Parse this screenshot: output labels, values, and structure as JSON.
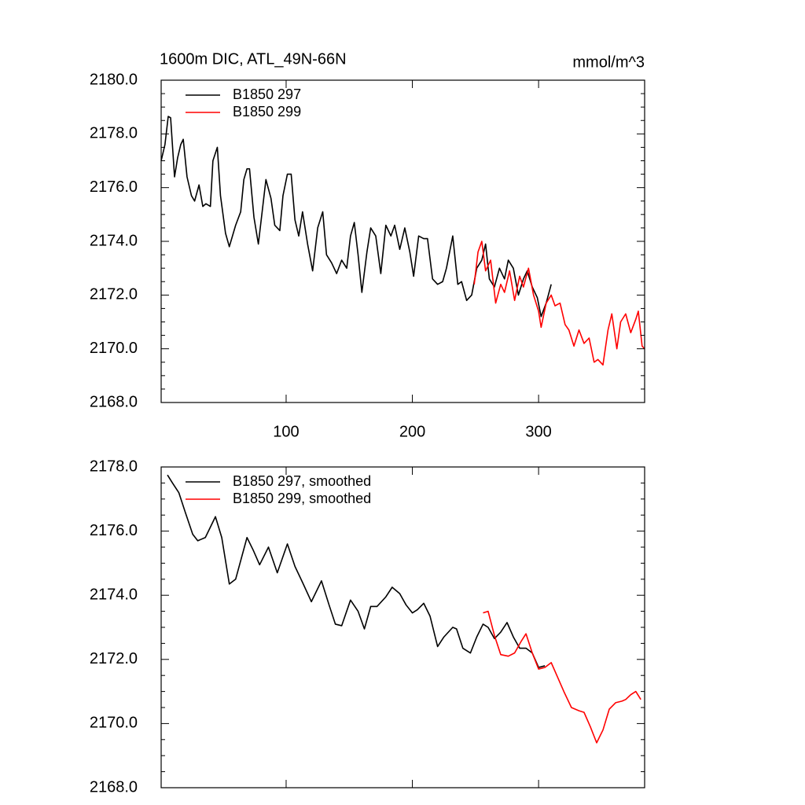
{
  "chart_data": [
    {
      "type": "line",
      "title": "1600m DIC, ATL_49N-66N",
      "subtitle": "mmol/m^3",
      "xlim": [
        1,
        384
      ],
      "xticks": [
        100,
        200,
        300
      ],
      "ylim": [
        2168,
        2180
      ],
      "yticks": [
        {
          "value": 2168,
          "label": "2168.0"
        },
        {
          "value": 2170,
          "label": "2170.0"
        },
        {
          "value": 2172,
          "label": "2172.0"
        },
        {
          "value": 2174,
          "label": "2174.0"
        },
        {
          "value": 2176,
          "label": "2176.0"
        },
        {
          "value": 2178,
          "label": "2178.0"
        },
        {
          "value": 2180,
          "label": "2180.0"
        }
      ],
      "legend": "top-left",
      "series": [
        {
          "name": "B1850 297",
          "color": "#000000",
          "x": [
            1,
            4,
            6.6,
            8.5,
            11.6,
            14,
            16.5,
            18.5,
            20,
            21.5,
            25,
            27.5,
            31,
            34,
            36.5,
            40,
            42,
            45.5,
            48,
            52,
            55,
            60,
            64,
            66.5,
            69,
            71,
            74.5,
            78,
            81,
            84,
            88,
            91,
            95,
            97.5,
            101,
            104,
            107,
            110,
            113,
            117,
            121,
            125,
            129,
            132,
            136,
            140,
            144,
            148,
            151,
            154,
            157,
            160,
            164,
            167,
            171,
            175,
            179,
            183,
            186,
            190,
            194,
            198,
            201,
            205,
            209,
            212,
            216,
            220,
            224,
            227,
            232,
            236,
            239,
            243,
            247,
            251,
            255,
            258,
            261,
            265,
            269,
            273,
            276,
            280,
            284,
            288,
            291,
            295,
            299,
            302,
            306,
            310
          ],
          "values": [
            2177.0,
            2177.6,
            2178.65,
            2178.6,
            2176.4,
            2177.1,
            2177.6,
            2177.8,
            2177.1,
            2176.4,
            2175.7,
            2175.5,
            2176.1,
            2175.3,
            2175.4,
            2175.3,
            2177.0,
            2177.5,
            2175.7,
            2174.3,
            2173.8,
            2174.6,
            2175.1,
            2176.3,
            2176.7,
            2176.7,
            2174.9,
            2173.9,
            2175.1,
            2176.3,
            2175.6,
            2174.6,
            2174.4,
            2175.7,
            2176.5,
            2176.5,
            2174.8,
            2174.2,
            2175.1,
            2173.9,
            2172.9,
            2174.5,
            2175.1,
            2173.5,
            2173.2,
            2172.8,
            2173.3,
            2173.0,
            2174.2,
            2174.7,
            2173.5,
            2172.1,
            2173.6,
            2174.5,
            2174.2,
            2172.8,
            2174.6,
            2174.2,
            2174.6,
            2173.7,
            2174.5,
            2173.6,
            2172.7,
            2174.2,
            2174.1,
            2174.1,
            2172.6,
            2172.4,
            2172.5,
            2173.0,
            2174.2,
            2172.4,
            2172.5,
            2171.8,
            2172.0,
            2173.0,
            2173.3,
            2173.9,
            2172.6,
            2172.3,
            2173.0,
            2172.6,
            2173.3,
            2173.0,
            2172.0,
            2172.6,
            2172.9,
            2172.3,
            2171.9,
            2171.2,
            2171.7,
            2172.4
          ]
        },
        {
          "name": "B1850 299",
          "color": "#ff0000",
          "x": [
            249,
            252,
            255,
            258,
            262,
            266,
            270,
            273,
            277,
            281,
            285,
            288,
            292,
            296,
            300,
            302,
            306,
            310,
            313,
            317,
            321,
            324,
            328,
            332,
            336,
            340,
            344,
            347,
            351,
            355,
            358,
            362,
            365,
            369,
            373,
            377,
            379,
            382,
            384
          ],
          "values": [
            2172.4,
            2173.6,
            2174.0,
            2172.9,
            2173.3,
            2171.7,
            2172.4,
            2172.1,
            2172.9,
            2171.8,
            2172.7,
            2172.3,
            2173.0,
            2172.0,
            2171.4,
            2170.8,
            2171.7,
            2172.0,
            2171.6,
            2171.7,
            2170.9,
            2170.7,
            2170.1,
            2170.7,
            2170.2,
            2170.4,
            2169.5,
            2169.6,
            2169.4,
            2170.7,
            2171.3,
            2170.0,
            2171.0,
            2171.3,
            2170.6,
            2171.1,
            2171.4,
            2170.1,
            2170.0
          ]
        }
      ]
    },
    {
      "type": "line",
      "xlim": [
        1,
        384
      ],
      "xticks": [
        100,
        200,
        300
      ],
      "xtick_labels": false,
      "ylim": [
        2168,
        2178
      ],
      "yticks": [
        {
          "value": 2168,
          "label": "2168.0"
        },
        {
          "value": 2170,
          "label": "2170.0"
        },
        {
          "value": 2172,
          "label": "2172.0"
        },
        {
          "value": 2174,
          "label": "2174.0"
        },
        {
          "value": 2176,
          "label": "2176.0"
        },
        {
          "value": 2178,
          "label": "2178.0"
        }
      ],
      "legend": "top-left",
      "series": [
        {
          "name": "B1850 297, smoothed",
          "color": "#000000",
          "x": [
            6,
            10,
            15,
            20,
            26,
            30,
            36,
            44,
            49,
            55,
            60,
            69,
            74,
            79,
            86,
            93,
            101,
            107,
            113,
            120,
            128,
            134,
            139,
            144,
            151,
            157,
            162,
            167,
            172,
            179,
            184,
            190,
            195,
            200,
            204,
            209,
            214,
            220,
            225,
            232,
            235,
            240,
            246,
            251,
            256,
            260,
            265,
            270,
            275,
            280,
            285,
            290,
            295,
            300,
            305
          ],
          "values": [
            2177.75,
            2177.5,
            2177.2,
            2176.6,
            2175.9,
            2175.7,
            2175.8,
            2176.45,
            2175.8,
            2174.35,
            2174.5,
            2175.8,
            2175.4,
            2174.95,
            2175.5,
            2174.7,
            2175.6,
            2174.9,
            2174.4,
            2173.8,
            2174.45,
            2173.7,
            2173.1,
            2173.05,
            2173.85,
            2173.5,
            2172.95,
            2173.65,
            2173.65,
            2173.95,
            2174.25,
            2174.05,
            2173.7,
            2173.45,
            2173.55,
            2173.75,
            2173.35,
            2172.4,
            2172.7,
            2173.0,
            2172.95,
            2172.35,
            2172.2,
            2172.7,
            2173.1,
            2173.0,
            2172.65,
            2172.85,
            2173.15,
            2172.7,
            2172.35,
            2172.35,
            2172.2,
            2171.75,
            2171.8
          ]
        },
        {
          "name": "B1850 299, smoothed",
          "color": "#ff0000",
          "x": [
            256,
            260,
            265,
            270,
            276,
            281,
            286,
            290,
            295,
            300,
            305,
            310,
            315,
            320,
            326,
            332,
            336,
            341,
            346,
            351,
            356,
            361,
            366,
            369,
            373,
            377,
            381
          ],
          "values": [
            2173.45,
            2173.5,
            2172.75,
            2172.15,
            2172.1,
            2172.2,
            2172.55,
            2172.8,
            2172.2,
            2171.7,
            2171.75,
            2171.9,
            2171.45,
            2171.0,
            2170.5,
            2170.4,
            2170.35,
            2169.9,
            2169.4,
            2169.8,
            2170.45,
            2170.65,
            2170.7,
            2170.75,
            2170.9,
            2171.0,
            2170.75
          ]
        }
      ]
    }
  ]
}
